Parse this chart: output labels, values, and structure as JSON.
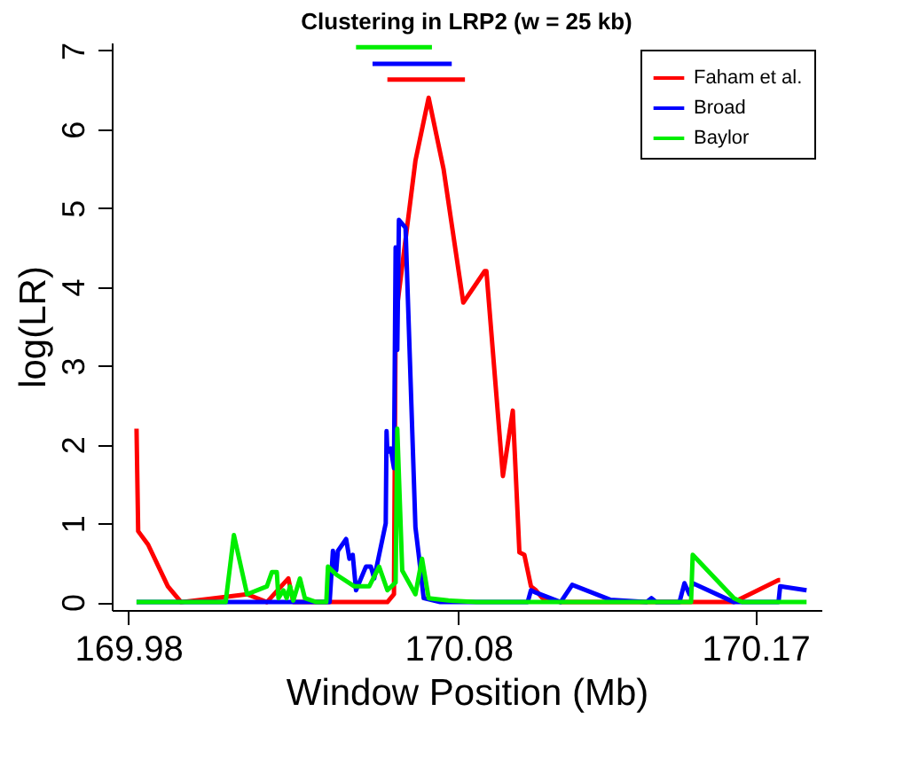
{
  "chart_data": {
    "type": "line",
    "title": "Clustering in LRP2 (w = 25 kb)",
    "xlabel": "Window Position (Mb)",
    "ylabel": "log(LR)",
    "xlim": [
      169.975,
      170.19
    ],
    "xticks": [
      169.98,
      170.08,
      170.17
    ],
    "ylim": [
      -0.1,
      7.1
    ],
    "yticks": [
      0,
      1,
      2,
      3,
      4,
      5,
      6,
      7
    ],
    "grid": false,
    "legend": "top right",
    "line_style": "solid",
    "marker": "none",
    "series": [
      {
        "name": "Faham et al.",
        "color": "#ff0000",
        "x": [
          169.9825,
          169.983,
          169.986,
          169.992,
          169.996,
          170.016,
          170.022,
          170.0285,
          170.03,
          170.0585,
          170.0605,
          170.061,
          170.067,
          170.071,
          170.0755,
          170.0815,
          170.088,
          170.0885,
          170.0935,
          170.0965,
          170.0985,
          170.1,
          170.102,
          170.1035,
          170.1055,
          170.111,
          170.1635,
          170.177,
          170.1775
        ],
        "values": [
          2.2,
          0.9,
          0.73,
          0.2,
          0,
          0.1,
          0,
          0.3,
          0,
          0,
          0.1,
          3.6,
          5.6,
          6.4,
          5.5,
          3.8,
          4.2,
          4.2,
          1.6,
          2.43,
          0.63,
          0.6,
          0.2,
          0.15,
          0.05,
          0,
          0,
          0.28,
          0.28
        ]
      },
      {
        "name": "Broad",
        "color": "#0000ff",
        "x": [
          169.9825,
          170.041,
          170.042,
          170.043,
          170.0435,
          170.046,
          170.047,
          170.048,
          170.049,
          170.052,
          170.0535,
          170.0545,
          170.058,
          170.05825,
          170.0585,
          170.0595,
          170.0605,
          170.061,
          170.0615,
          170.062,
          170.064,
          170.067,
          170.068,
          170.0695,
          170.0745,
          170.101,
          170.102,
          170.1035,
          170.111,
          170.1145,
          170.126,
          170.137,
          170.1385,
          170.14,
          170.147,
          170.1485,
          170.15,
          170.151,
          170.1635,
          170.177,
          170.1775,
          170.1855
        ],
        "values": [
          0,
          0,
          0.65,
          0.4,
          0.65,
          0.8,
          0.55,
          0.6,
          0.15,
          0.45,
          0.45,
          0.3,
          1.0,
          2.17,
          1.9,
          1.95,
          1.7,
          4.5,
          3.2,
          4.85,
          4.75,
          0.95,
          0.6,
          0.05,
          0,
          0,
          0.15,
          0.12,
          0,
          0.22,
          0.03,
          0,
          0.05,
          0,
          0,
          0.24,
          0.1,
          0.24,
          0,
          0,
          0.2,
          0.15
        ]
      },
      {
        "name": "Baylor",
        "color": "#00ee00",
        "x": [
          169.9825,
          170.0095,
          170.012,
          170.016,
          170.022,
          170.0235,
          170.025,
          170.0255,
          170.027,
          170.028,
          170.029,
          170.03,
          170.032,
          170.0335,
          170.037,
          170.04,
          170.0405,
          170.043,
          170.0485,
          170.053,
          170.056,
          170.0585,
          170.061,
          170.0615,
          170.063,
          170.067,
          170.069,
          170.071,
          170.077,
          170.0855,
          170.1505,
          170.151,
          170.1635,
          170.166,
          170.1855
        ],
        "values": [
          0,
          0,
          0.85,
          0.1,
          0.2,
          0.38,
          0.38,
          0.05,
          0.15,
          0.05,
          0.2,
          0.02,
          0.3,
          0.05,
          0,
          0,
          0.45,
          0.35,
          0.2,
          0.2,
          0.45,
          0.15,
          0.25,
          2.2,
          0.4,
          0.1,
          0.55,
          0.05,
          0.02,
          0,
          0,
          0.6,
          0.05,
          0,
          0
        ]
      },
      {
        "color": "#00ee00",
        "x": [
          170.049,
          170.072
        ],
        "values": [
          7.04,
          7.04
        ]
      },
      {
        "color": "#0000ff",
        "x": [
          170.054,
          170.078
        ],
        "values": [
          6.83,
          6.83
        ]
      },
      {
        "color": "#ff0000",
        "x": [
          170.0585,
          170.082
        ],
        "values": [
          6.63,
          6.63
        ]
      }
    ]
  }
}
